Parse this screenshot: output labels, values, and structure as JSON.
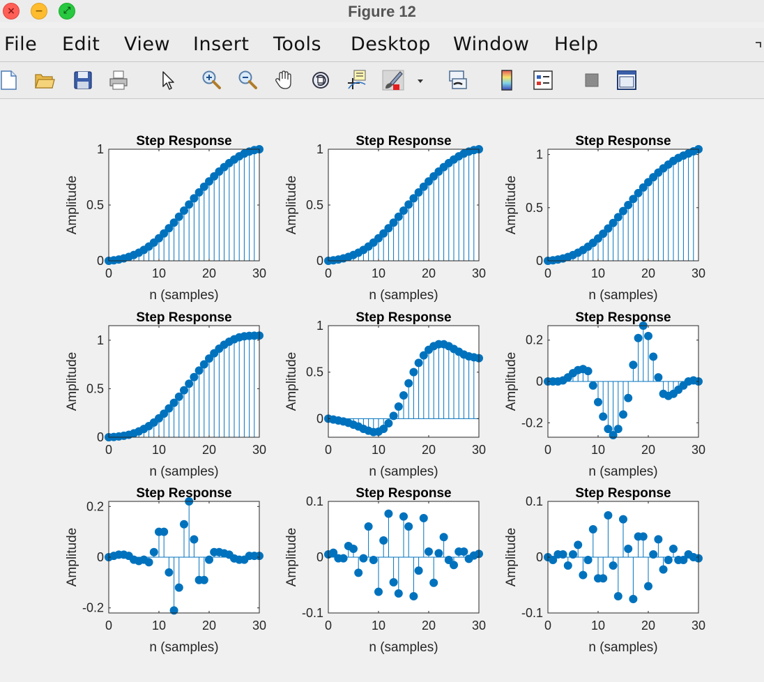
{
  "window": {
    "title": "Figure 12",
    "controls": {
      "close_glyph": "×",
      "minimize_glyph": "−",
      "zoom_glyph": "⤢"
    }
  },
  "menubar": {
    "items": [
      "File",
      "Edit",
      "View",
      "Insert",
      "Tools",
      "Desktop",
      "Window",
      "Help"
    ]
  },
  "toolbar": {
    "buttons": [
      "new-figure-icon",
      "open-file-icon",
      "save-icon",
      "print-icon",
      "pointer-icon",
      "zoom-in-icon",
      "zoom-out-icon",
      "pan-hand-icon",
      "rotate-3d-icon",
      "data-cursor-icon",
      "brush-icon",
      "brush-dropdown-icon",
      "link-plot-icon",
      "colorbar-icon",
      "legend-icon",
      "hide-plot-tools-icon",
      "show-plot-tools-icon"
    ]
  },
  "colors": {
    "stem": "#0072bd",
    "axes": "#262626",
    "background": "#f0f0f0"
  },
  "chart_data": [
    {
      "type": "stem",
      "title": "Step Response",
      "xlabel": "n (samples)",
      "ylabel": "Amplitude",
      "xlim": [
        0,
        30
      ],
      "ylim": [
        0,
        1
      ],
      "yticks": [
        0,
        0.5,
        1
      ],
      "xticks": [
        0,
        10,
        20,
        30
      ],
      "x": [
        0,
        1,
        2,
        3,
        4,
        5,
        6,
        7,
        8,
        9,
        10,
        11,
        12,
        13,
        14,
        15,
        16,
        17,
        18,
        19,
        20,
        21,
        22,
        23,
        24,
        25,
        26,
        27,
        28,
        29,
        30
      ],
      "values": [
        0,
        0.005,
        0.012,
        0.022,
        0.035,
        0.052,
        0.073,
        0.098,
        0.128,
        0.163,
        0.202,
        0.245,
        0.292,
        0.342,
        0.395,
        0.45,
        0.505,
        0.56,
        0.613,
        0.664,
        0.712,
        0.757,
        0.8,
        0.84,
        0.876,
        0.908,
        0.937,
        0.961,
        0.979,
        0.992,
        1.0
      ]
    },
    {
      "type": "stem",
      "title": "Step Response",
      "xlabel": "n (samples)",
      "ylabel": "Amplitude",
      "xlim": [
        0,
        30
      ],
      "ylim": [
        0,
        1
      ],
      "yticks": [
        0,
        0.5,
        1
      ],
      "xticks": [
        0,
        10,
        20,
        30
      ],
      "x": [
        0,
        1,
        2,
        3,
        4,
        5,
        6,
        7,
        8,
        9,
        10,
        11,
        12,
        13,
        14,
        15,
        16,
        17,
        18,
        19,
        20,
        21,
        22,
        23,
        24,
        25,
        26,
        27,
        28,
        29,
        30
      ],
      "values": [
        0,
        0.005,
        0.012,
        0.022,
        0.035,
        0.052,
        0.073,
        0.098,
        0.128,
        0.163,
        0.202,
        0.245,
        0.292,
        0.342,
        0.395,
        0.45,
        0.505,
        0.56,
        0.613,
        0.664,
        0.712,
        0.757,
        0.8,
        0.84,
        0.876,
        0.908,
        0.937,
        0.961,
        0.979,
        0.992,
        1.0
      ]
    },
    {
      "type": "stem",
      "title": "Step Response",
      "xlabel": "n (samples)",
      "ylabel": "Amplitude",
      "xlim": [
        0,
        30
      ],
      "ylim": [
        0,
        1.05
      ],
      "yticks": [
        0,
        0.5,
        1
      ],
      "xticks": [
        0,
        10,
        20,
        30
      ],
      "x": [
        0,
        1,
        2,
        3,
        4,
        5,
        6,
        7,
        8,
        9,
        10,
        11,
        12,
        13,
        14,
        15,
        16,
        17,
        18,
        19,
        20,
        21,
        22,
        23,
        24,
        25,
        26,
        27,
        28,
        29,
        30
      ],
      "values": [
        0,
        0.005,
        0.012,
        0.022,
        0.036,
        0.054,
        0.076,
        0.102,
        0.133,
        0.169,
        0.21,
        0.255,
        0.304,
        0.356,
        0.411,
        0.468,
        0.525,
        0.582,
        0.637,
        0.69,
        0.74,
        0.787,
        0.83,
        0.87,
        0.906,
        0.94,
        0.968,
        0.99,
        1.01,
        1.03,
        1.05
      ]
    },
    {
      "type": "stem",
      "title": "Step Response",
      "xlabel": "n (samples)",
      "ylabel": "Amplitude",
      "xlim": [
        0,
        30
      ],
      "ylim": [
        0,
        1.15
      ],
      "yticks": [
        0,
        0.5,
        1
      ],
      "xticks": [
        0,
        10,
        20,
        30
      ],
      "x": [
        0,
        1,
        2,
        3,
        4,
        5,
        6,
        7,
        8,
        9,
        10,
        11,
        12,
        13,
        14,
        15,
        16,
        17,
        18,
        19,
        20,
        21,
        22,
        23,
        24,
        25,
        26,
        27,
        28,
        29,
        30
      ],
      "values": [
        0,
        0.003,
        0.008,
        0.015,
        0.025,
        0.04,
        0.06,
        0.085,
        0.115,
        0.152,
        0.195,
        0.243,
        0.297,
        0.355,
        0.418,
        0.484,
        0.552,
        0.62,
        0.687,
        0.751,
        0.811,
        0.865,
        0.913,
        0.953,
        0.985,
        1.01,
        1.03,
        1.04,
        1.045,
        1.047,
        1.048
      ]
    },
    {
      "type": "stem",
      "title": "Step Response",
      "xlabel": "n (samples)",
      "ylabel": "Amplitude",
      "xlim": [
        0,
        30
      ],
      "ylim": [
        -0.2,
        1
      ],
      "yticks": [
        0,
        0.5,
        1
      ],
      "xticks": [
        0,
        10,
        20,
        30
      ],
      "x": [
        0,
        1,
        2,
        3,
        4,
        5,
        6,
        7,
        8,
        9,
        10,
        11,
        12,
        13,
        14,
        15,
        16,
        17,
        18,
        19,
        20,
        21,
        22,
        23,
        24,
        25,
        26,
        27,
        28,
        29,
        30
      ],
      "values": [
        0,
        -0.01,
        -0.02,
        -0.03,
        -0.045,
        -0.065,
        -0.085,
        -0.11,
        -0.13,
        -0.145,
        -0.14,
        -0.11,
        -0.05,
        0.03,
        0.13,
        0.25,
        0.38,
        0.5,
        0.6,
        0.68,
        0.74,
        0.78,
        0.8,
        0.8,
        0.78,
        0.75,
        0.72,
        0.69,
        0.67,
        0.66,
        0.65
      ]
    },
    {
      "type": "stem",
      "title": "Step Response",
      "xlabel": "n (samples)",
      "ylabel": "Amplitude",
      "xlim": [
        0,
        30
      ],
      "ylim": [
        -0.27,
        0.27
      ],
      "yticks": [
        -0.2,
        0,
        0.2
      ],
      "xticks": [
        0,
        10,
        20,
        30
      ],
      "x": [
        0,
        1,
        2,
        3,
        4,
        5,
        6,
        7,
        8,
        9,
        10,
        11,
        12,
        13,
        14,
        15,
        16,
        17,
        18,
        19,
        20,
        21,
        22,
        23,
        24,
        25,
        26,
        27,
        28,
        29,
        30
      ],
      "values": [
        0,
        0,
        0,
        0.005,
        0.02,
        0.04,
        0.055,
        0.06,
        0.05,
        -0.02,
        -0.1,
        -0.17,
        -0.23,
        -0.26,
        -0.23,
        -0.16,
        -0.08,
        0.08,
        0.21,
        0.27,
        0.22,
        0.12,
        0.02,
        -0.06,
        -0.07,
        -0.06,
        -0.04,
        -0.02,
        0,
        0.005,
        0
      ]
    },
    {
      "type": "stem",
      "title": "Step Response",
      "xlabel": "n (samples)",
      "ylabel": "Amplitude",
      "xlim": [
        0,
        30
      ],
      "ylim": [
        -0.22,
        0.22
      ],
      "yticks": [
        -0.2,
        0,
        0.2
      ],
      "xticks": [
        0,
        10,
        20,
        30
      ],
      "x": [
        0,
        1,
        2,
        3,
        4,
        5,
        6,
        7,
        8,
        9,
        10,
        11,
        12,
        13,
        14,
        15,
        16,
        17,
        18,
        19,
        20,
        21,
        22,
        23,
        24,
        25,
        26,
        27,
        28,
        29,
        30
      ],
      "values": [
        0,
        0.005,
        0.01,
        0.01,
        0.005,
        -0.01,
        -0.015,
        -0.01,
        -0.02,
        0.02,
        0.1,
        0.1,
        -0.06,
        -0.21,
        -0.12,
        0.13,
        0.22,
        0.07,
        -0.09,
        -0.09,
        -0.01,
        0.02,
        0.02,
        0.015,
        0.01,
        -0.005,
        -0.01,
        -0.01,
        0.005,
        0.005,
        0.005
      ]
    },
    {
      "type": "stem",
      "title": "Step Response",
      "xlabel": "n (samples)",
      "ylabel": "Amplitude",
      "xlim": [
        0,
        30
      ],
      "ylim": [
        -0.1,
        0.1
      ],
      "yticks": [
        -0.1,
        0,
        0.1
      ],
      "xticks": [
        0,
        10,
        20,
        30
      ],
      "x": [
        0,
        1,
        2,
        3,
        4,
        5,
        6,
        7,
        8,
        9,
        10,
        11,
        12,
        13,
        14,
        15,
        16,
        17,
        18,
        19,
        20,
        21,
        22,
        23,
        24,
        25,
        26,
        27,
        28,
        29,
        30
      ],
      "values": [
        0.005,
        0.008,
        -0.002,
        -0.002,
        0.02,
        0.015,
        -0.028,
        -0.002,
        0.055,
        -0.005,
        -0.062,
        0.03,
        0.078,
        -0.045,
        -0.065,
        0.073,
        0.055,
        -0.07,
        -0.024,
        0.07,
        0.01,
        -0.046,
        0.007,
        0.036,
        -0.005,
        -0.014,
        0.01,
        0.01,
        -0.003,
        0.003,
        0.006
      ]
    },
    {
      "type": "stem",
      "title": "Step Response",
      "xlabel": "n (samples)",
      "ylabel": "Amplitude",
      "xlim": [
        0,
        30
      ],
      "ylim": [
        -0.1,
        0.1
      ],
      "yticks": [
        -0.1,
        0,
        0.1
      ],
      "xticks": [
        0,
        10,
        20,
        30
      ],
      "x": [
        0,
        1,
        2,
        3,
        4,
        5,
        6,
        7,
        8,
        9,
        10,
        11,
        12,
        13,
        14,
        15,
        16,
        17,
        18,
        19,
        20,
        21,
        22,
        23,
        24,
        25,
        26,
        27,
        28,
        29,
        30
      ],
      "values": [
        0,
        -0.005,
        0.005,
        0.005,
        -0.015,
        0.005,
        0.022,
        -0.032,
        -0.005,
        0.05,
        -0.038,
        -0.038,
        0.075,
        -0.015,
        -0.07,
        0.068,
        0.015,
        -0.075,
        0.037,
        0.037,
        -0.052,
        0.005,
        0.032,
        -0.022,
        -0.005,
        0.015,
        -0.005,
        -0.005,
        0.005,
        0,
        -0.002
      ]
    }
  ]
}
